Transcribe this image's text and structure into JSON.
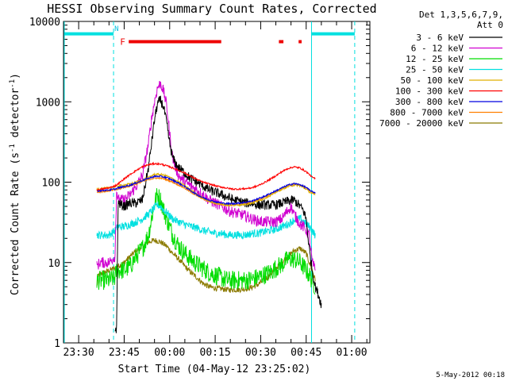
{
  "chart_data": {
    "type": "line",
    "title": "HESSI Observing Summary Count Rates, Corrected",
    "xlabel": "Start Time (04-May-12 23:25:02)",
    "ylabel": "Corrected Count Rate (s",
    "ylabel_sup1": "-1",
    "ylabel_mid": " detector",
    "ylabel_sup2": "-1",
    "ylabel_end": ")",
    "x_unit": "minutes after 23:25:00 on 04-May-2012",
    "xlim": [
      0,
      101
    ],
    "ylim": [
      1,
      10000
    ],
    "y_scale": "log",
    "xticks": [
      {
        "x": 5,
        "label": "23:30"
      },
      {
        "x": 20,
        "label": "23:45"
      },
      {
        "x": 35,
        "label": "00:00"
      },
      {
        "x": 50,
        "label": "00:15"
      },
      {
        "x": 65,
        "label": "00:30"
      },
      {
        "x": 80,
        "label": "00:45"
      },
      {
        "x": 95,
        "label": "01:00"
      }
    ],
    "yticks": [
      {
        "y": 1,
        "label": "1"
      },
      {
        "y": 10,
        "label": "10"
      },
      {
        "y": 100,
        "label": "100"
      },
      {
        "y": 1000,
        "label": "1000"
      },
      {
        "y": 10000,
        "label": "10000"
      }
    ],
    "legend": {
      "position": "right-of-plot",
      "header1": "Det 1,3,5,6,7,9,",
      "header2": "Att 0"
    },
    "series": [
      {
        "name": "3 - 6 keV",
        "color": "#000000",
        "x": [
          17,
          17.5,
          18,
          20,
          22,
          24,
          26,
          28,
          29,
          30,
          31,
          32,
          33,
          34,
          35,
          36,
          37,
          38,
          40,
          42,
          44,
          46,
          48,
          50,
          52,
          54,
          56,
          58,
          60,
          62,
          64,
          66,
          68,
          70,
          72,
          74,
          76,
          78,
          79,
          80,
          81,
          82,
          83,
          84,
          85
        ],
        "y": [
          1.5,
          1.5,
          55,
          50,
          55,
          55,
          60,
          150,
          300,
          600,
          950,
          1050,
          850,
          550,
          300,
          200,
          170,
          150,
          130,
          110,
          100,
          90,
          80,
          75,
          70,
          65,
          60,
          58,
          55,
          55,
          52,
          52,
          52,
          52,
          55,
          58,
          60,
          50,
          45,
          35,
          15,
          8,
          5,
          4,
          3
        ]
      },
      {
        "name": "6 - 12 keV",
        "color": "#d000d0",
        "x": [
          11,
          12,
          15,
          17,
          17.5,
          18,
          20,
          22,
          24,
          26,
          28,
          29,
          30,
          31,
          32,
          33,
          34,
          35,
          36,
          37,
          38,
          40,
          42,
          44,
          46,
          48,
          50,
          52,
          54,
          56,
          58,
          60,
          62,
          64,
          66,
          68,
          70,
          72,
          74,
          75,
          76,
          78,
          79,
          80,
          81,
          82,
          83
        ],
        "y": [
          9,
          10,
          10,
          12,
          80,
          60,
          60,
          70,
          90,
          120,
          300,
          600,
          1000,
          1500,
          1700,
          1350,
          900,
          400,
          200,
          150,
          120,
          100,
          90,
          80,
          70,
          60,
          55,
          50,
          45,
          42,
          40,
          38,
          35,
          33,
          32,
          32,
          32,
          35,
          45,
          50,
          40,
          30,
          28,
          25,
          22,
          10,
          8
        ]
      },
      {
        "name": "12 - 25 keV",
        "color": "#00dd00",
        "x": [
          11,
          15,
          17,
          17.5,
          18,
          20,
          22,
          24,
          26,
          28,
          29,
          30,
          31,
          32,
          33,
          34,
          35,
          36,
          38,
          40,
          42,
          44,
          46,
          48,
          50,
          52,
          54,
          56,
          58,
          60,
          62,
          64,
          66,
          68,
          70,
          72,
          74,
          76,
          78,
          79,
          80,
          81,
          82,
          83
        ],
        "y": [
          6,
          6,
          6.5,
          8,
          8,
          8,
          9,
          12,
          15,
          22,
          35,
          55,
          70,
          60,
          45,
          35,
          28,
          22,
          16,
          13,
          11,
          9.5,
          8.5,
          7.5,
          7,
          6.5,
          6,
          6,
          6,
          6,
          6.2,
          6.5,
          7,
          7.5,
          8.5,
          9.5,
          11,
          11,
          10,
          9,
          8,
          7,
          6,
          5
        ]
      },
      {
        "name": "25 - 50 keV",
        "color": "#00e0e0",
        "x": [
          11,
          15,
          17,
          18,
          20,
          22,
          24,
          26,
          28,
          30,
          31,
          32,
          33,
          34,
          35,
          36,
          38,
          40,
          42,
          44,
          46,
          48,
          50,
          52,
          54,
          56,
          58,
          60,
          62,
          64,
          66,
          68,
          70,
          72,
          74,
          76,
          78,
          79,
          80,
          81,
          82,
          83
        ],
        "y": [
          22,
          22,
          25,
          28,
          28,
          30,
          32,
          35,
          40,
          48,
          52,
          50,
          45,
          42,
          38,
          35,
          32,
          30,
          28,
          27,
          25,
          24,
          23,
          23,
          22,
          22,
          22,
          22,
          23,
          23,
          24,
          25,
          26,
          28,
          30,
          34,
          35,
          33,
          30,
          28,
          25,
          22
        ]
      },
      {
        "name": "50 - 100 keV",
        "color": "#e0b000",
        "x": [
          11,
          15,
          17,
          18,
          20,
          22,
          24,
          26,
          28,
          30,
          32,
          34,
          36,
          38,
          40,
          42,
          44,
          46,
          48,
          50,
          52,
          54,
          56,
          58,
          60,
          62,
          64,
          66,
          68,
          70,
          72,
          74,
          76,
          78,
          80,
          81,
          82,
          83
        ],
        "y": [
          82,
          85,
          88,
          90,
          92,
          95,
          100,
          105,
          115,
          125,
          125,
          120,
          110,
          100,
          90,
          80,
          70,
          63,
          58,
          55,
          53,
          52,
          52,
          52,
          53,
          55,
          58,
          62,
          68,
          75,
          82,
          88,
          92,
          90,
          82,
          76,
          72,
          70
        ]
      },
      {
        "name": "100 - 300 keV",
        "color": "#ff0000",
        "x": [
          11,
          15,
          17,
          18,
          20,
          22,
          24,
          26,
          28,
          30,
          32,
          34,
          36,
          38,
          40,
          42,
          44,
          46,
          48,
          50,
          52,
          54,
          56,
          58,
          60,
          62,
          64,
          66,
          68,
          70,
          72,
          74,
          76,
          78,
          80,
          81,
          82,
          83
        ],
        "y": [
          80,
          85,
          90,
          95,
          110,
          125,
          140,
          155,
          165,
          170,
          168,
          160,
          150,
          140,
          130,
          118,
          108,
          100,
          95,
          90,
          87,
          84,
          82,
          82,
          83,
          85,
          90,
          98,
          108,
          120,
          135,
          148,
          155,
          150,
          135,
          125,
          115,
          110
        ]
      },
      {
        "name": "300 - 800 keV",
        "color": "#0000e0",
        "x": [
          11,
          15,
          17,
          18,
          20,
          22,
          24,
          26,
          28,
          30,
          32,
          34,
          36,
          38,
          40,
          42,
          44,
          46,
          48,
          50,
          52,
          54,
          56,
          58,
          60,
          62,
          64,
          66,
          68,
          70,
          72,
          74,
          76,
          78,
          80,
          81,
          82,
          83
        ],
        "y": [
          78,
          80,
          82,
          85,
          88,
          92,
          98,
          105,
          112,
          118,
          118,
          114,
          106,
          97,
          88,
          78,
          70,
          64,
          60,
          57,
          55,
          54,
          54,
          55,
          56,
          58,
          62,
          66,
          72,
          78,
          85,
          92,
          96,
          93,
          86,
          80,
          76,
          74
        ]
      },
      {
        "name": "800 - 7000 keV",
        "color": "#ff8000",
        "x": [
          11,
          15,
          17,
          18,
          20,
          22,
          24,
          26,
          28,
          30,
          32,
          34,
          36,
          38,
          40,
          42,
          44,
          46,
          48,
          50,
          52,
          54,
          56,
          58,
          60,
          62,
          64,
          66,
          68,
          70,
          72,
          74,
          76,
          78,
          80,
          81,
          82,
          83
        ],
        "y": [
          75,
          78,
          80,
          82,
          86,
          90,
          95,
          102,
          108,
          112,
          112,
          108,
          100,
          92,
          84,
          75,
          68,
          62,
          58,
          55,
          53,
          52,
          52,
          53,
          55,
          57,
          60,
          64,
          70,
          76,
          83,
          90,
          95,
          92,
          85,
          79,
          75,
          72
        ]
      },
      {
        "name": "7000 - 20000 keV",
        "color": "#8b7a00",
        "x": [
          11,
          11.5,
          15,
          17,
          18,
          20,
          22,
          24,
          26,
          28,
          30,
          32,
          34,
          36,
          38,
          40,
          42,
          44,
          46,
          48,
          50,
          52,
          54,
          56,
          58,
          60,
          62,
          64,
          66,
          68,
          70,
          72,
          74,
          76,
          78,
          80,
          81,
          82,
          83
        ],
        "y": [
          5,
          7,
          8,
          8.5,
          9,
          10,
          12,
          14,
          16,
          18,
          19,
          18,
          16,
          13,
          11,
          9,
          7.5,
          6.5,
          5.5,
          5,
          4.8,
          4.7,
          4.6,
          4.6,
          4.6,
          4.7,
          4.9,
          5.3,
          6,
          7,
          8.5,
          10,
          12,
          14,
          15,
          13,
          10,
          8,
          6
        ]
      }
    ],
    "overlays": {
      "cyan_bars": [
        [
          0,
          16.5
        ],
        [
          81.5,
          96
        ]
      ],
      "cyan_bars_y": 7000,
      "red_bars": [
        [
          21.5,
          52
        ],
        [
          71,
          72.5
        ],
        [
          77.5,
          78.5
        ]
      ],
      "red_bars_y": 5600,
      "solid_vlines": [
        0,
        81.5
      ],
      "dashed_vlines": [
        16.5,
        96
      ],
      "N_label": {
        "x": 17.5,
        "y": 7600,
        "text": "N"
      },
      "F_label": {
        "x": 19.5,
        "y": 5600,
        "text": "F"
      }
    },
    "footer": "5-May-2012 00:18"
  }
}
